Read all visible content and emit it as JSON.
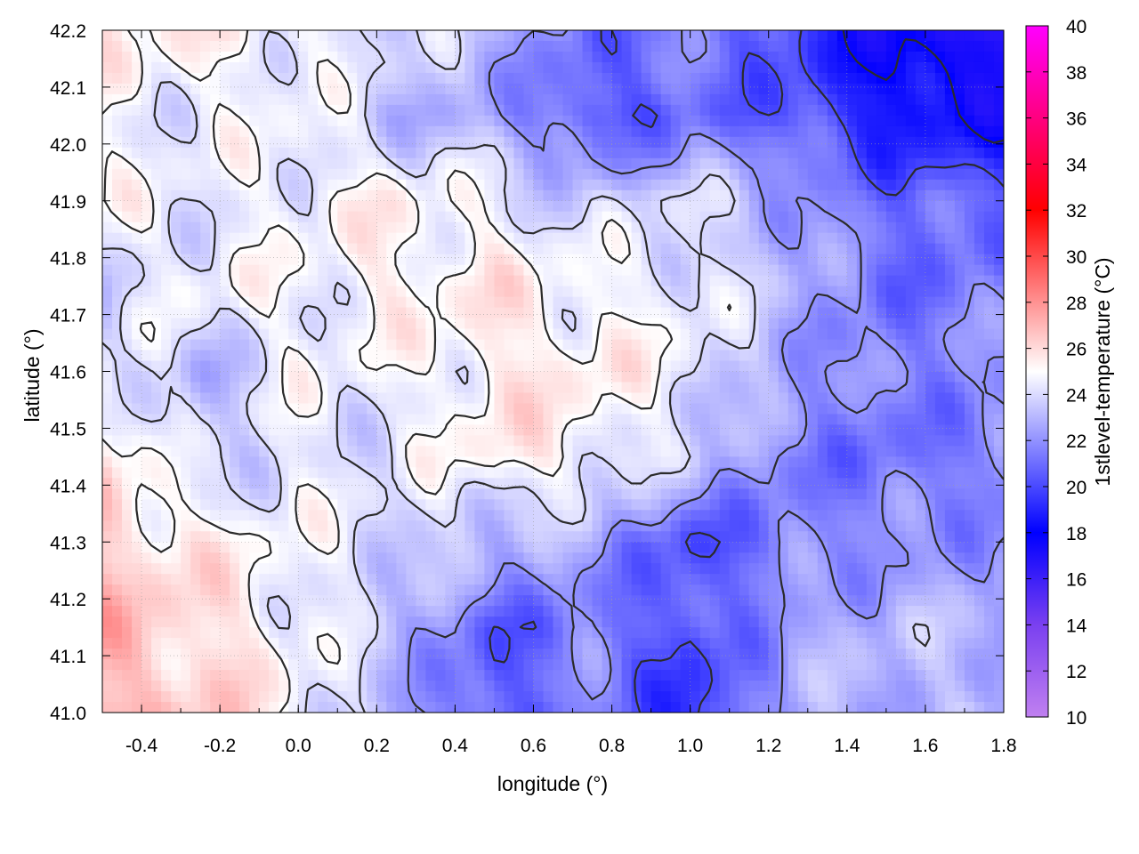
{
  "chart_data": {
    "type": "heatmap",
    "title": "",
    "xlabel": "longitude (°)",
    "ylabel": "latitude (°)",
    "colorbar_label": "1stlevel-temperature (°C)",
    "xlim": [
      -0.5,
      1.8
    ],
    "ylim": [
      41.0,
      42.2
    ],
    "x_ticks": [
      -0.4,
      -0.2,
      0.0,
      0.2,
      0.4,
      0.6,
      0.8,
      1.0,
      1.2,
      1.4,
      1.6,
      1.8
    ],
    "x_tick_labels": [
      "-0.4",
      "-0.2",
      "0.0",
      "0.2",
      "0.4",
      "0.6",
      "0.8",
      "1.0",
      "1.2",
      "1.4",
      "1.6",
      "1.8"
    ],
    "y_ticks": [
      41.0,
      41.1,
      41.2,
      41.3,
      41.4,
      41.5,
      41.6,
      41.7,
      41.8,
      41.9,
      42.0,
      42.1,
      42.2
    ],
    "y_tick_labels": [
      "41.0",
      "41.1",
      "41.2",
      "41.3",
      "41.4",
      "41.5",
      "41.6",
      "41.7",
      "41.8",
      "41.9",
      "42.0",
      "42.1",
      "42.2"
    ],
    "colorbar_range": [
      10,
      40
    ],
    "colorbar_ticks": [
      10,
      12,
      14,
      16,
      18,
      20,
      22,
      24,
      26,
      28,
      30,
      32,
      34,
      36,
      38,
      40
    ],
    "colorbar_tick_labels": [
      "10",
      "12",
      "14",
      "16",
      "18",
      "20",
      "22",
      "24",
      "26",
      "28",
      "30",
      "32",
      "34",
      "36",
      "38",
      "40"
    ],
    "colormap": [
      {
        "value": 10,
        "color": "#c080f0"
      },
      {
        "value": 14,
        "color": "#7a40f0"
      },
      {
        "value": 18,
        "color": "#0000ff"
      },
      {
        "value": 25,
        "color": "#ffffff"
      },
      {
        "value": 32,
        "color": "#ff0000"
      },
      {
        "value": 40,
        "color": "#ff00ff"
      }
    ],
    "grid": true,
    "field_samples_celsius": {
      "x": [
        -0.5,
        -0.25,
        0.0,
        0.25,
        0.5,
        0.75,
        1.0,
        1.25,
        1.5,
        1.8
      ],
      "y": [
        42.2,
        42.05,
        41.9,
        41.75,
        41.6,
        41.45,
        41.3,
        41.15,
        41.0
      ],
      "z": [
        [
          25.5,
          25.2,
          24.8,
          24.0,
          23.0,
          21.0,
          21.5,
          20.0,
          17.5,
          16.5
        ],
        [
          24.6,
          24.5,
          24.6,
          23.2,
          22.5,
          20.0,
          21.0,
          20.5,
          18.5,
          18.0
        ],
        [
          24.8,
          24.2,
          24.8,
          25.2,
          24.5,
          23.5,
          24.0,
          22.5,
          21.0,
          20.5
        ],
        [
          23.5,
          24.8,
          24.6,
          25.3,
          25.5,
          24.8,
          24.5,
          23.0,
          21.0,
          21.5
        ],
        [
          24.6,
          23.0,
          24.6,
          24.5,
          25.5,
          25.5,
          24.5,
          22.5,
          21.5,
          22.0
        ],
        [
          26.0,
          23.5,
          24.4,
          24.0,
          25.6,
          25.0,
          23.5,
          21.5,
          21.0,
          21.5
        ],
        [
          26.5,
          25.4,
          24.6,
          24.0,
          23.0,
          22.5,
          20.0,
          21.5,
          22.0,
          22.0
        ],
        [
          27.0,
          26.0,
          24.8,
          23.0,
          20.5,
          21.5,
          20.0,
          22.5,
          23.0,
          23.0
        ],
        [
          26.8,
          26.5,
          24.8,
          23.0,
          20.0,
          22.0,
          19.0,
          22.5,
          23.0,
          23.0
        ]
      ]
    },
    "contour_levels_celsius": [
      18,
      20,
      22,
      24,
      25
    ]
  }
}
